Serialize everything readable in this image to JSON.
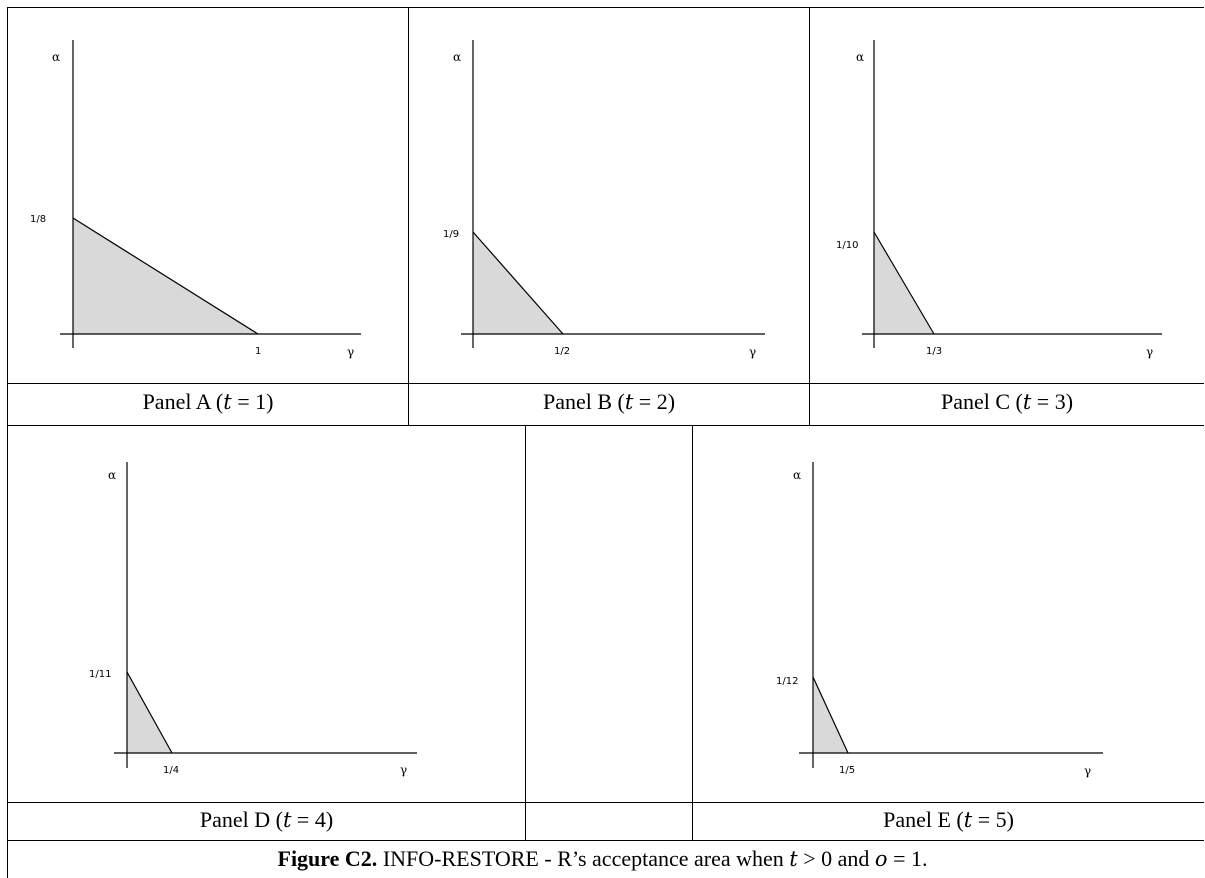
{
  "panels": [
    {
      "caption_prefix": "Panel A (",
      "var": "t",
      "eq": " = 1)",
      "x_axis_label": "γ",
      "y_axis_label": "α",
      "x_intercept_label": "1",
      "y_intercept_label": "1/8",
      "x_intercept": 1,
      "y_intercept": 0.125
    },
    {
      "caption_prefix": "Panel B (",
      "var": "t",
      "eq": " = 2)",
      "x_axis_label": "γ",
      "y_axis_label": "α",
      "x_intercept_label": "1/2",
      "y_intercept_label": "1/9",
      "x_intercept": 0.5,
      "y_intercept": 0.1111
    },
    {
      "caption_prefix": "Panel C (",
      "var": "t",
      "eq": " = 3)",
      "x_axis_label": "γ",
      "y_axis_label": "α",
      "x_intercept_label": "1/3",
      "y_intercept_label": "1/10",
      "x_intercept": 0.3333,
      "y_intercept": 0.1
    },
    {
      "caption_prefix": "Panel D (",
      "var": "t",
      "eq": " = 4)",
      "x_axis_label": "γ",
      "y_axis_label": "α",
      "x_intercept_label": "1/4",
      "y_intercept_label": "1/11",
      "x_intercept": 0.25,
      "y_intercept": 0.0909
    },
    {
      "caption_prefix": "Panel E (",
      "var": "t",
      "eq": " = 5)",
      "x_axis_label": "γ",
      "y_axis_label": "α",
      "x_intercept_label": "1/5",
      "y_intercept_label": "1/12",
      "x_intercept": 0.2,
      "y_intercept": 0.0833
    }
  ],
  "figure_caption": {
    "label": "Figure C2.",
    "text_before": " INFO-RESTORE - R’s acceptance area when ",
    "t_var": "t",
    "t_cond": " > 0 and ",
    "o_var": "o",
    "o_cond": " = 1."
  }
}
